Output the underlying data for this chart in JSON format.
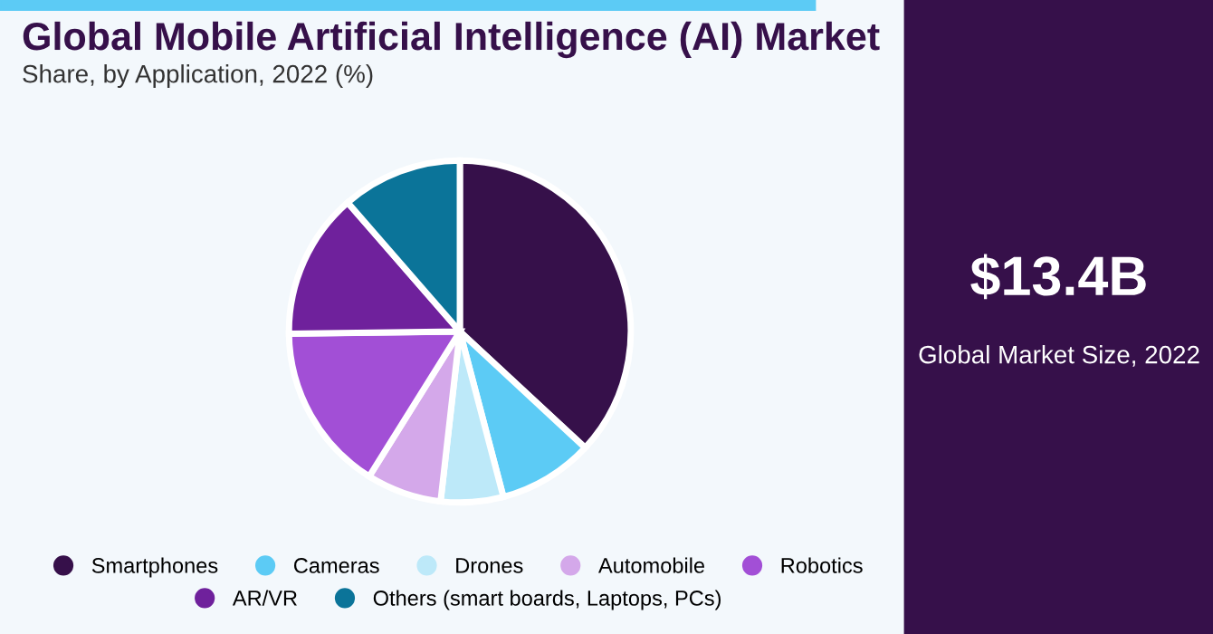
{
  "chart_data": {
    "type": "pie",
    "title": "Global Mobile Artificial Intelligence (AI) Market",
    "subtitle": "Share, by Application, 2022 (%)",
    "categories": [
      "Smartphones",
      "Cameras",
      "Drones",
      "Automobile",
      "Robotics",
      "AR/VR",
      "Others (smart boards, Laptops, PCs)"
    ],
    "values": [
      36.9,
      9.0,
      5.9,
      7.1,
      15.9,
      13.8,
      11.4
    ],
    "colors": [
      "#36104a",
      "#5ccbf5",
      "#bde9f9",
      "#d4a8ea",
      "#a24fd6",
      "#6f219c",
      "#0b7499"
    ],
    "legend": "bottom",
    "annotations": [
      "$13.4B",
      "Global Market Size, 2022"
    ]
  }
}
